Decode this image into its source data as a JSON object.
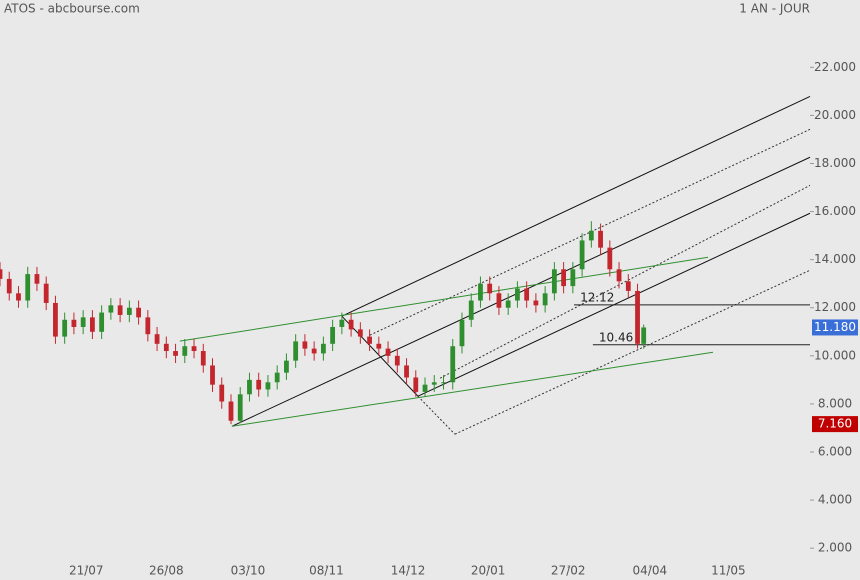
{
  "chart_data": {
    "type": "candlestick",
    "title": "ATOS - abcbourse.com",
    "period": "1 AN - JOUR",
    "x": [
      0,
      3,
      6,
      9,
      12,
      15,
      18,
      21,
      24,
      27,
      30,
      33,
      36,
      39,
      42,
      45,
      48,
      51,
      54,
      57,
      60,
      63,
      66,
      69,
      72,
      75,
      78,
      81,
      84,
      87,
      90,
      93,
      96,
      99,
      102,
      105,
      108,
      111,
      114,
      117,
      120,
      123,
      126,
      129,
      132,
      135,
      138,
      141,
      144,
      147,
      150,
      153,
      156,
      159,
      162,
      165,
      168,
      171,
      174,
      177,
      180,
      183,
      186,
      189,
      192,
      195,
      198,
      201,
      204,
      207,
      209
    ],
    "open": [
      13.6,
      13.2,
      12.6,
      12.3,
      13.4,
      13.0,
      12.2,
      10.8,
      11.5,
      11.2,
      11.6,
      11.0,
      11.8,
      12.1,
      11.7,
      12.0,
      11.6,
      10.9,
      10.5,
      10.2,
      10.0,
      10.4,
      10.2,
      9.6,
      8.8,
      8.1,
      7.3,
      8.4,
      9.0,
      8.6,
      8.9,
      9.3,
      9.8,
      10.6,
      10.3,
      10.1,
      10.5,
      11.2,
      11.5,
      11.1,
      10.8,
      10.5,
      10.3,
      10.0,
      9.6,
      9.1,
      8.5,
      8.8,
      8.9,
      8.9,
      10.4,
      11.5,
      12.3,
      13.0,
      12.6,
      12.0,
      12.3,
      12.8,
      12.3,
      12.1,
      12.6,
      13.6,
      12.9,
      13.6,
      14.8,
      15.2,
      14.5,
      13.6,
      13.1,
      12.7,
      10.5
    ],
    "high": [
      13.9,
      13.5,
      12.9,
      13.7,
      13.7,
      13.3,
      12.5,
      11.8,
      11.8,
      11.9,
      11.9,
      12.1,
      12.4,
      12.4,
      12.3,
      12.3,
      11.9,
      11.2,
      10.8,
      10.5,
      10.7,
      10.7,
      10.5,
      9.9,
      9.1,
      8.4,
      8.7,
      9.3,
      9.3,
      9.2,
      9.6,
      10.1,
      10.9,
      10.9,
      10.6,
      10.8,
      11.5,
      11.8,
      11.8,
      11.4,
      11.1,
      10.8,
      10.6,
      10.3,
      9.9,
      9.4,
      9.1,
      9.2,
      9.2,
      10.7,
      11.8,
      12.6,
      13.3,
      13.3,
      12.9,
      12.6,
      13.1,
      13.1,
      12.6,
      12.9,
      13.9,
      13.9,
      13.9,
      15.1,
      15.6,
      15.5,
      14.8,
      13.9,
      13.4,
      13.0,
      11.3
    ],
    "low": [
      12.9,
      12.3,
      12.0,
      12.0,
      12.7,
      11.9,
      10.5,
      10.5,
      10.9,
      10.9,
      10.7,
      10.7,
      11.5,
      11.4,
      11.4,
      11.3,
      10.6,
      10.2,
      9.9,
      9.7,
      9.7,
      9.9,
      9.3,
      8.5,
      7.8,
      7.16,
      7.2,
      8.1,
      8.3,
      8.3,
      8.6,
      9.0,
      9.5,
      10.0,
      9.8,
      9.8,
      10.2,
      10.9,
      10.8,
      10.5,
      10.2,
      10.0,
      9.7,
      9.3,
      8.8,
      8.3,
      8.3,
      8.5,
      8.6,
      8.6,
      10.1,
      11.2,
      12.0,
      12.3,
      11.7,
      11.7,
      12.0,
      12.0,
      11.8,
      11.8,
      12.3,
      12.6,
      12.6,
      13.3,
      14.5,
      14.2,
      13.3,
      12.8,
      12.4,
      10.3,
      10.3
    ],
    "close": [
      13.2,
      12.6,
      12.3,
      13.4,
      13.0,
      12.2,
      10.8,
      11.5,
      11.2,
      11.6,
      11.0,
      11.8,
      12.1,
      11.7,
      12.0,
      11.6,
      10.9,
      10.5,
      10.2,
      10.0,
      10.4,
      10.2,
      9.6,
      8.8,
      8.1,
      7.3,
      8.4,
      9.0,
      8.6,
      8.9,
      9.3,
      9.8,
      10.6,
      10.3,
      10.1,
      10.5,
      11.2,
      11.5,
      11.1,
      10.8,
      10.5,
      10.3,
      10.0,
      9.6,
      9.1,
      8.5,
      8.8,
      8.9,
      8.9,
      10.4,
      11.5,
      12.3,
      13.0,
      12.6,
      12.0,
      12.3,
      12.8,
      12.3,
      12.1,
      12.6,
      13.6,
      12.9,
      13.6,
      14.8,
      15.2,
      14.5,
      13.6,
      13.1,
      12.7,
      10.5,
      11.18
    ],
    "up_color": "#2f8f2f",
    "down_color": "#c4262e",
    "xlim": [
      0,
      263
    ],
    "xticks": [
      {
        "value": 28,
        "label": "21/07"
      },
      {
        "value": 54,
        "label": "26/08"
      },
      {
        "value": 80.5,
        "label": "03/10"
      },
      {
        "value": 106,
        "label": "08/11"
      },
      {
        "value": 132.5,
        "label": "14/12"
      },
      {
        "value": 158.5,
        "label": "20/01"
      },
      {
        "value": 184.5,
        "label": "27/02"
      },
      {
        "value": 211,
        "label": "04/04"
      },
      {
        "value": 236.5,
        "label": "11/05"
      }
    ],
    "ylim": [
      1.3,
      24.8
    ],
    "yticks": [
      {
        "value": 2,
        "label": "2.000"
      },
      {
        "value": 4,
        "label": "4.000"
      },
      {
        "value": 6,
        "label": "6.000"
      },
      {
        "value": 8,
        "label": "8.000"
      },
      {
        "value": 10,
        "label": "10.000"
      },
      {
        "value": 12,
        "label": "12.000"
      },
      {
        "value": 14,
        "label": "14.000"
      },
      {
        "value": 16,
        "label": "16.000"
      },
      {
        "value": 18,
        "label": "18.000"
      },
      {
        "value": 20,
        "label": "20.000"
      },
      {
        "value": 22,
        "label": "22.000"
      }
    ],
    "trendlines": [
      {
        "color": "#111111",
        "dashed": false,
        "points": [
          [
            111.0,
            11.65
          ],
          [
            263,
            20.79
          ]
        ]
      },
      {
        "color": "#111111",
        "dashed": false,
        "points": [
          [
            75.3,
            7.07
          ],
          [
            263,
            18.26
          ]
        ]
      },
      {
        "color": "#111111",
        "dashed": false,
        "points": [
          [
            135.7,
            8.32
          ],
          [
            263,
            15.93
          ]
        ]
      },
      {
        "color": "#111111",
        "dashed": false,
        "points": [
          [
            111.0,
            11.65
          ],
          [
            135.7,
            8.32
          ]
        ]
      },
      {
        "color": "#333333",
        "dashed": true,
        "points": [
          [
            120.1,
            10.86
          ],
          [
            263,
            19.42
          ]
        ]
      },
      {
        "color": "#333333",
        "dashed": true,
        "points": [
          [
            142.9,
            9.07
          ],
          [
            263,
            17.09
          ]
        ]
      },
      {
        "color": "#333333",
        "dashed": true,
        "points": [
          [
            147.7,
            6.74
          ],
          [
            263,
            13.56
          ]
        ]
      },
      {
        "color": "#333333",
        "dashed": true,
        "points": [
          [
            135.7,
            8.32
          ],
          [
            147.7,
            6.74
          ]
        ]
      },
      {
        "color": "#2f8f2f",
        "dashed": false,
        "points": [
          [
            58.4,
            10.61
          ],
          [
            229.9,
            14.1
          ]
        ]
      },
      {
        "color": "#2f8f2f",
        "dashed": false,
        "points": [
          [
            75.3,
            7.07
          ],
          [
            231.5,
            10.15
          ]
        ]
      }
    ],
    "levels": [
      {
        "value": 12.12,
        "from": 186.4
      },
      {
        "value": 10.46,
        "from": 192.5
      }
    ],
    "price_tags": [
      {
        "value": 11.18,
        "label": "11.180",
        "color": "#3a6fd8"
      },
      {
        "value": 7.16,
        "label": "7.160",
        "color": "#c00000"
      }
    ]
  }
}
